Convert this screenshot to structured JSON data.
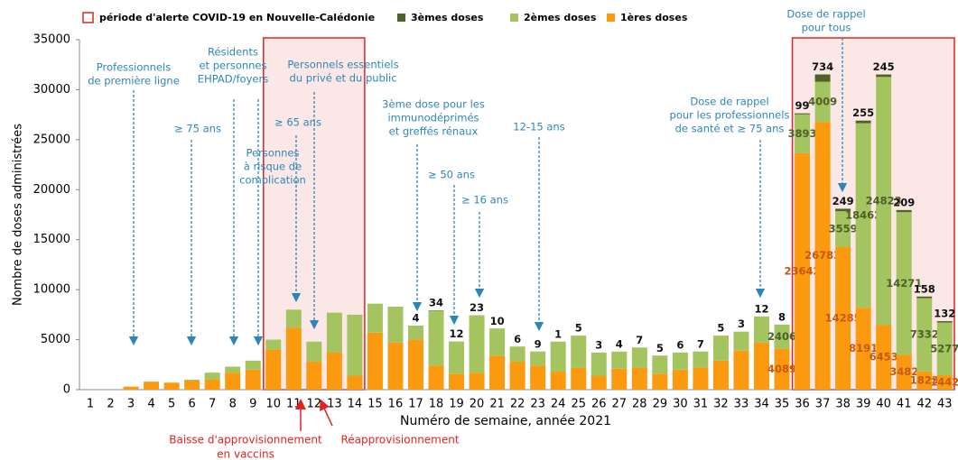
{
  "chart_data": {
    "type": "stacked_bar",
    "legend_period": "période d'alerte COVID-19 en Nouvelle-Calédonie",
    "xlabel": "Numéro de semaine, année 2021",
    "ylabel": "Nombre de doses administrées",
    "categories": [
      "1",
      "2",
      "3",
      "4",
      "5",
      "6",
      "7",
      "8",
      "9",
      "10",
      "11",
      "12",
      "13",
      "14",
      "15",
      "16",
      "17",
      "18",
      "19",
      "20",
      "21",
      "22",
      "23",
      "24",
      "25",
      "26",
      "27",
      "28",
      "29",
      "30",
      "31",
      "32",
      "33",
      "34",
      "35",
      "36",
      "37",
      "38",
      "39",
      "40",
      "41",
      "42",
      "43"
    ],
    "ylim": [
      0,
      35000
    ],
    "yticks": [
      0,
      5000,
      10000,
      15000,
      20000,
      25000,
      30000,
      35000
    ],
    "grid": false,
    "series": [
      {
        "name": "1ères doses",
        "color": "#fb9a0e",
        "label_color": "#c55a11",
        "values": [
          0,
          0,
          300,
          800,
          700,
          900,
          1000,
          1700,
          2000,
          4000,
          6200,
          2800,
          3700,
          1400,
          5700,
          4700,
          5000,
          2400,
          1600,
          1700,
          3400,
          2800,
          2400,
          1800,
          2200,
          1400,
          2100,
          2200,
          1600,
          2000,
          2200,
          2900,
          3900,
          4700,
          4089,
          23642,
          26783,
          14285,
          8191,
          6453,
          3482,
          1823,
          1442
        ],
        "value_labels": [
          null,
          null,
          null,
          null,
          null,
          null,
          null,
          null,
          null,
          null,
          null,
          null,
          null,
          null,
          null,
          null,
          null,
          null,
          null,
          null,
          null,
          null,
          null,
          null,
          null,
          null,
          null,
          null,
          null,
          null,
          null,
          null,
          null,
          null,
          "4089",
          "23642",
          "26783",
          "14285",
          "8191",
          "6453",
          "3482",
          "1823",
          "1442"
        ]
      },
      {
        "name": "2èmes doses",
        "color": "#a3c45e",
        "label_color": "#4f5f2a",
        "values": [
          0,
          0,
          0,
          0,
          0,
          100,
          700,
          600,
          900,
          1000,
          1800,
          2000,
          4000,
          6100,
          2900,
          3600,
          1400,
          5500,
          3200,
          5700,
          2700,
          1500,
          1400,
          3000,
          3200,
          2300,
          1700,
          2000,
          1800,
          1700,
          1600,
          2500,
          1900,
          2600,
          2406,
          3893,
          4009,
          3559,
          18462,
          24823,
          14271,
          7332,
          5277
        ],
        "value_labels": [
          null,
          null,
          null,
          null,
          null,
          null,
          null,
          null,
          null,
          null,
          null,
          null,
          null,
          null,
          null,
          null,
          null,
          null,
          null,
          null,
          null,
          null,
          null,
          null,
          null,
          null,
          null,
          null,
          null,
          null,
          null,
          null,
          null,
          null,
          "2406",
          "3893",
          "4009",
          "3559",
          "18462",
          "24823",
          "14271",
          "7332",
          "5277"
        ]
      },
      {
        "name": "3èmes doses",
        "color": "#4f6228",
        "label_color": "#111111",
        "values": [
          null,
          null,
          null,
          null,
          null,
          null,
          null,
          null,
          null,
          null,
          null,
          null,
          null,
          null,
          null,
          null,
          4,
          34,
          12,
          23,
          10,
          6,
          9,
          1,
          5,
          3,
          4,
          7,
          5,
          6,
          7,
          5,
          3,
          12,
          8,
          99,
          734,
          249,
          255,
          245,
          209,
          158,
          132
        ]
      }
    ],
    "annotations": [
      {
        "lines": [
          "Professionnels",
          "de première ligne"
        ]
      },
      {
        "lines": [
          "≥ 75 ans"
        ]
      },
      {
        "lines": [
          "Résidents",
          "et personnes",
          "EHPAD/foyers"
        ]
      },
      {
        "lines": [
          "Personnes",
          "à risque de",
          "complication"
        ]
      },
      {
        "lines": [
          "≥ 65 ans"
        ]
      },
      {
        "lines": [
          "Personnels essentiels",
          "du privé et du public"
        ]
      },
      {
        "lines": [
          "3ème dose pour les",
          "immunodéprimés",
          "et greffés rénaux"
        ]
      },
      {
        "lines": [
          "≥ 50 ans"
        ]
      },
      {
        "lines": [
          "≥ 16 ans"
        ]
      },
      {
        "lines": [
          "12-15 ans"
        ]
      },
      {
        "lines": [
          "Dose de rappel",
          "pour les professionnels",
          "de santé et ≥ 75 ans"
        ]
      },
      {
        "lines": [
          "Dose de rappel",
          "pour tous"
        ]
      }
    ],
    "supply_notes": [
      {
        "lines": [
          "Baisse d'approvisionnement",
          "en vaccins"
        ]
      },
      {
        "lines": [
          "Réapprovisionnement"
        ]
      }
    ]
  }
}
